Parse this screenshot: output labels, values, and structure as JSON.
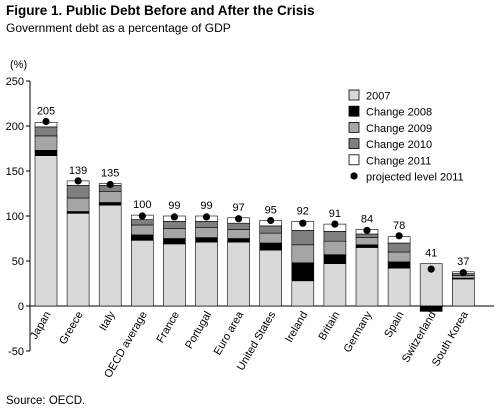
{
  "title": "Figure 1. Public Debt Before and After the Crisis",
  "subtitle": "Government debt as a percentage of GDP",
  "source": "Source: OECD.",
  "chart_data": {
    "type": "bar",
    "stacked": true,
    "ylabel": "(%)",
    "ylim": [
      -50,
      250
    ],
    "yticks": [
      -50,
      0,
      50,
      100,
      150,
      200,
      250
    ],
    "grid": false,
    "legend_position": "top-right",
    "categories": [
      "Japan",
      "Greece",
      "Italy",
      "OECD average",
      "France",
      "Portugal",
      "Euro area",
      "United States",
      "Ireland",
      "Britain",
      "Germany",
      "Spain",
      "Switzerland",
      "South Korea"
    ],
    "series": [
      {
        "name": "2007",
        "color": "#d9d9d9",
        "values": [
          167,
          103,
          112,
          73,
          69,
          71,
          71,
          62,
          28,
          47,
          65,
          42,
          47,
          30
        ]
      },
      {
        "name": "Change 2008",
        "color": "#000000",
        "values": [
          6,
          2,
          3,
          6,
          6,
          5,
          4,
          8,
          20,
          10,
          3,
          7,
          -6,
          1
        ]
      },
      {
        "name": "Change 2009",
        "color": "#a6a6a6",
        "values": [
          16,
          15,
          12,
          11,
          11,
          11,
          10,
          11,
          20,
          15,
          8,
          11,
          0,
          3
        ]
      },
      {
        "name": "Change 2010",
        "color": "#7f7f7f",
        "values": [
          10,
          14,
          7,
          6,
          8,
          7,
          7,
          8,
          16,
          11,
          4,
          10,
          0,
          2
        ]
      },
      {
        "name": "Change 2011",
        "color": "#ffffff",
        "values": [
          5,
          5,
          2,
          5,
          6,
          6,
          6,
          6,
          10,
          8,
          5,
          7,
          0,
          2
        ]
      }
    ],
    "projected": {
      "name": "projected level 2011",
      "values": [
        205,
        139,
        135,
        100,
        99,
        99,
        97,
        95,
        92,
        91,
        84,
        78,
        41,
        37
      ]
    },
    "value_labels": [
      "205",
      "139",
      "135",
      "100",
      "99",
      "99",
      "97",
      "95",
      "92",
      "91",
      "84",
      "78",
      "41",
      "37"
    ]
  }
}
